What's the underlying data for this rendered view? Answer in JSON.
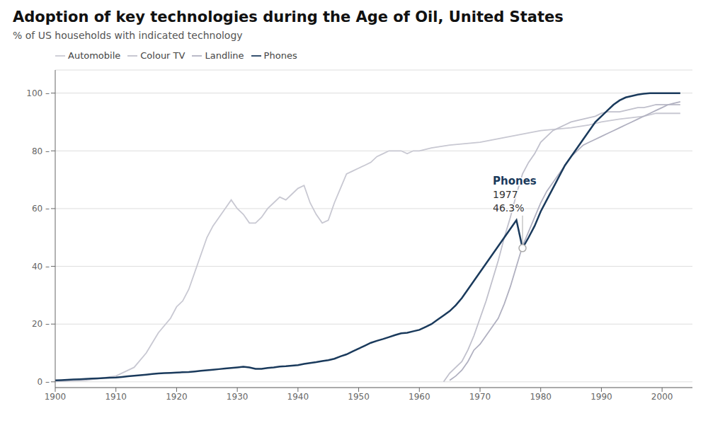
{
  "chart_data": {
    "type": "line",
    "title": "Adoption of key technologies during the Age of Oil, United States",
    "subtitle": "% of US households with indicated technology",
    "xlim": [
      1900,
      2005
    ],
    "ylim": [
      -2,
      108
    ],
    "xticks": [
      1900,
      1910,
      1920,
      1930,
      1940,
      1950,
      1960,
      1970,
      1980,
      1990,
      2000
    ],
    "yticks": [
      {
        "value": 0,
        "label": "0 –"
      },
      {
        "value": 20,
        "label": "20 –"
      },
      {
        "value": 40,
        "label": "40 –"
      },
      {
        "value": 60,
        "label": "60 –"
      },
      {
        "value": 80,
        "label": "80 –"
      },
      {
        "value": 100,
        "label": "100 –"
      }
    ],
    "grid": true,
    "legend": "top left",
    "series": [
      {
        "name": "Automobile",
        "color": "#c8c8d2",
        "x": [
          1900,
          1905,
          1910,
          1913,
          1915,
          1917,
          1919,
          1920,
          1921,
          1922,
          1923,
          1924,
          1925,
          1926,
          1927,
          1928,
          1929,
          1930,
          1931,
          1932,
          1933,
          1934,
          1935,
          1936,
          1937,
          1938,
          1939,
          1940,
          1941,
          1942,
          1943,
          1944,
          1945,
          1946,
          1947,
          1948,
          1949,
          1950,
          1951,
          1952,
          1953,
          1954,
          1955,
          1956,
          1957,
          1958,
          1959,
          1960,
          1962,
          1965,
          1970,
          1975,
          1980,
          1985,
          1988,
          1990,
          1993,
          1995,
          1997,
          1999,
          2001,
          2003
        ],
        "values": [
          0.1,
          0.5,
          2.0,
          5.0,
          10.0,
          17.0,
          22.0,
          26.0,
          28.0,
          32.0,
          38.0,
          44.0,
          50.0,
          54.0,
          57.0,
          60.0,
          63.0,
          60.0,
          58.0,
          55.0,
          55.0,
          57.0,
          60.0,
          62.0,
          64.0,
          63.0,
          65.0,
          67.0,
          68.0,
          62.0,
          58.0,
          55.0,
          56.0,
          62.0,
          67.0,
          72.0,
          73.0,
          74.0,
          75.0,
          76.0,
          78.0,
          79.0,
          80.0,
          80.0,
          80.0,
          79.0,
          80.0,
          80.0,
          81.0,
          82.0,
          83.0,
          85.0,
          87.0,
          88.0,
          89.0,
          90.0,
          91.0,
          91.5,
          92.0,
          93.0,
          93.0,
          93.0
        ]
      },
      {
        "name": "Colour TV",
        "color": "#c0c0cc",
        "x": [
          1964,
          1965,
          1966,
          1967,
          1968,
          1969,
          1970,
          1971,
          1972,
          1973,
          1974,
          1975,
          1976,
          1977,
          1978,
          1979,
          1980,
          1981,
          1982,
          1983,
          1984,
          1985,
          1986,
          1987,
          1988,
          1989,
          1990,
          1991,
          1992,
          1993,
          1994,
          1995,
          1996,
          1997,
          1998,
          1999,
          2000,
          2001,
          2002,
          2003
        ],
        "values": [
          0.0,
          3.0,
          5.0,
          7.0,
          11.0,
          16.0,
          22.0,
          28.0,
          35.0,
          42.0,
          50.0,
          57.0,
          65.0,
          72.0,
          76.0,
          79.0,
          83.0,
          85.0,
          87.0,
          88.0,
          89.0,
          90.0,
          90.5,
          91.0,
          91.5,
          92.0,
          93.0,
          93.5,
          93.5,
          93.5,
          94.0,
          94.5,
          95.0,
          95.0,
          95.5,
          96.0,
          96.0,
          96.0,
          96.0,
          96.0
        ]
      },
      {
        "name": "Landline",
        "color": "#b0b0c0",
        "x": [
          1965,
          1966,
          1967,
          1968,
          1969,
          1970,
          1971,
          1972,
          1973,
          1974,
          1975,
          1976,
          1977,
          1978,
          1979,
          1980,
          1981,
          1982,
          1983,
          1984,
          1985,
          1986,
          1987,
          1988,
          1989,
          1990,
          1991,
          1992,
          1993,
          1994,
          1995,
          1996,
          1997,
          1998,
          1999,
          2000,
          2001,
          2002,
          2003
        ],
        "values": [
          0.5,
          2.0,
          4.0,
          7.0,
          11.0,
          13.0,
          16.0,
          19.0,
          22.0,
          27.0,
          33.0,
          40.0,
          47.0,
          52.0,
          57.0,
          62.0,
          66.0,
          69.0,
          72.0,
          75.0,
          78.0,
          80.0,
          82.0,
          83.0,
          84.0,
          85.0,
          86.0,
          87.0,
          88.0,
          89.0,
          90.0,
          91.0,
          92.0,
          93.0,
          94.0,
          95.0,
          96.0,
          96.5,
          97.0
        ]
      },
      {
        "name": "Phones",
        "color": "#1a3a5c",
        "x": [
          1900,
          1901,
          1902,
          1903,
          1904,
          1905,
          1906,
          1907,
          1908,
          1909,
          1910,
          1911,
          1912,
          1913,
          1914,
          1915,
          1916,
          1917,
          1918,
          1919,
          1920,
          1921,
          1922,
          1923,
          1924,
          1925,
          1926,
          1927,
          1928,
          1929,
          1930,
          1931,
          1932,
          1933,
          1934,
          1935,
          1936,
          1937,
          1938,
          1939,
          1940,
          1941,
          1942,
          1943,
          1944,
          1945,
          1946,
          1947,
          1948,
          1949,
          1950,
          1951,
          1952,
          1953,
          1954,
          1955,
          1956,
          1957,
          1958,
          1959,
          1960,
          1961,
          1962,
          1963,
          1964,
          1965,
          1966,
          1967,
          1968,
          1969,
          1970,
          1971,
          1972,
          1973,
          1974,
          1975,
          1976,
          1977,
          1978,
          1979,
          1980,
          1981,
          1982,
          1983,
          1984,
          1985,
          1986,
          1987,
          1988,
          1989,
          1990,
          1991,
          1992,
          1993,
          1994,
          1995,
          1996,
          1997,
          1998,
          1999,
          2000,
          2001,
          2002,
          2003
        ],
        "values": [
          0.5,
          0.6,
          0.7,
          0.8,
          0.9,
          1.0,
          1.1,
          1.2,
          1.3,
          1.4,
          1.5,
          1.7,
          1.9,
          2.1,
          2.3,
          2.5,
          2.7,
          2.9,
          3.0,
          3.1,
          3.2,
          3.3,
          3.4,
          3.6,
          3.8,
          4.0,
          4.2,
          4.4,
          4.6,
          4.8,
          5.0,
          5.2,
          5.0,
          4.5,
          4.5,
          4.8,
          5.0,
          5.3,
          5.4,
          5.6,
          5.8,
          6.2,
          6.5,
          6.8,
          7.2,
          7.5,
          8.0,
          8.8,
          9.5,
          10.5,
          11.5,
          12.5,
          13.5,
          14.2,
          14.8,
          15.5,
          16.2,
          16.8,
          17.0,
          17.5,
          18.0,
          19.0,
          20.0,
          21.5,
          23.0,
          24.5,
          26.5,
          29.0,
          32.0,
          35.0,
          38.0,
          41.0,
          44.0,
          47.0,
          50.0,
          53.0,
          56.0,
          46.3,
          50.0,
          54.0,
          59.0,
          63.0,
          67.0,
          71.0,
          75.0,
          78.0,
          81.0,
          84.0,
          87.0,
          90.0,
          92.0,
          94.0,
          96.0,
          97.5,
          98.5,
          99.0,
          99.5,
          99.8,
          100.0,
          100.0,
          100.0,
          100.0,
          100.0,
          100.0
        ]
      }
    ],
    "annotations": [
      {
        "x": 1977,
        "y": 46.3,
        "text": [
          "Phones",
          "1977",
          "46.3%"
        ],
        "color": "#1a3a5c"
      }
    ]
  }
}
